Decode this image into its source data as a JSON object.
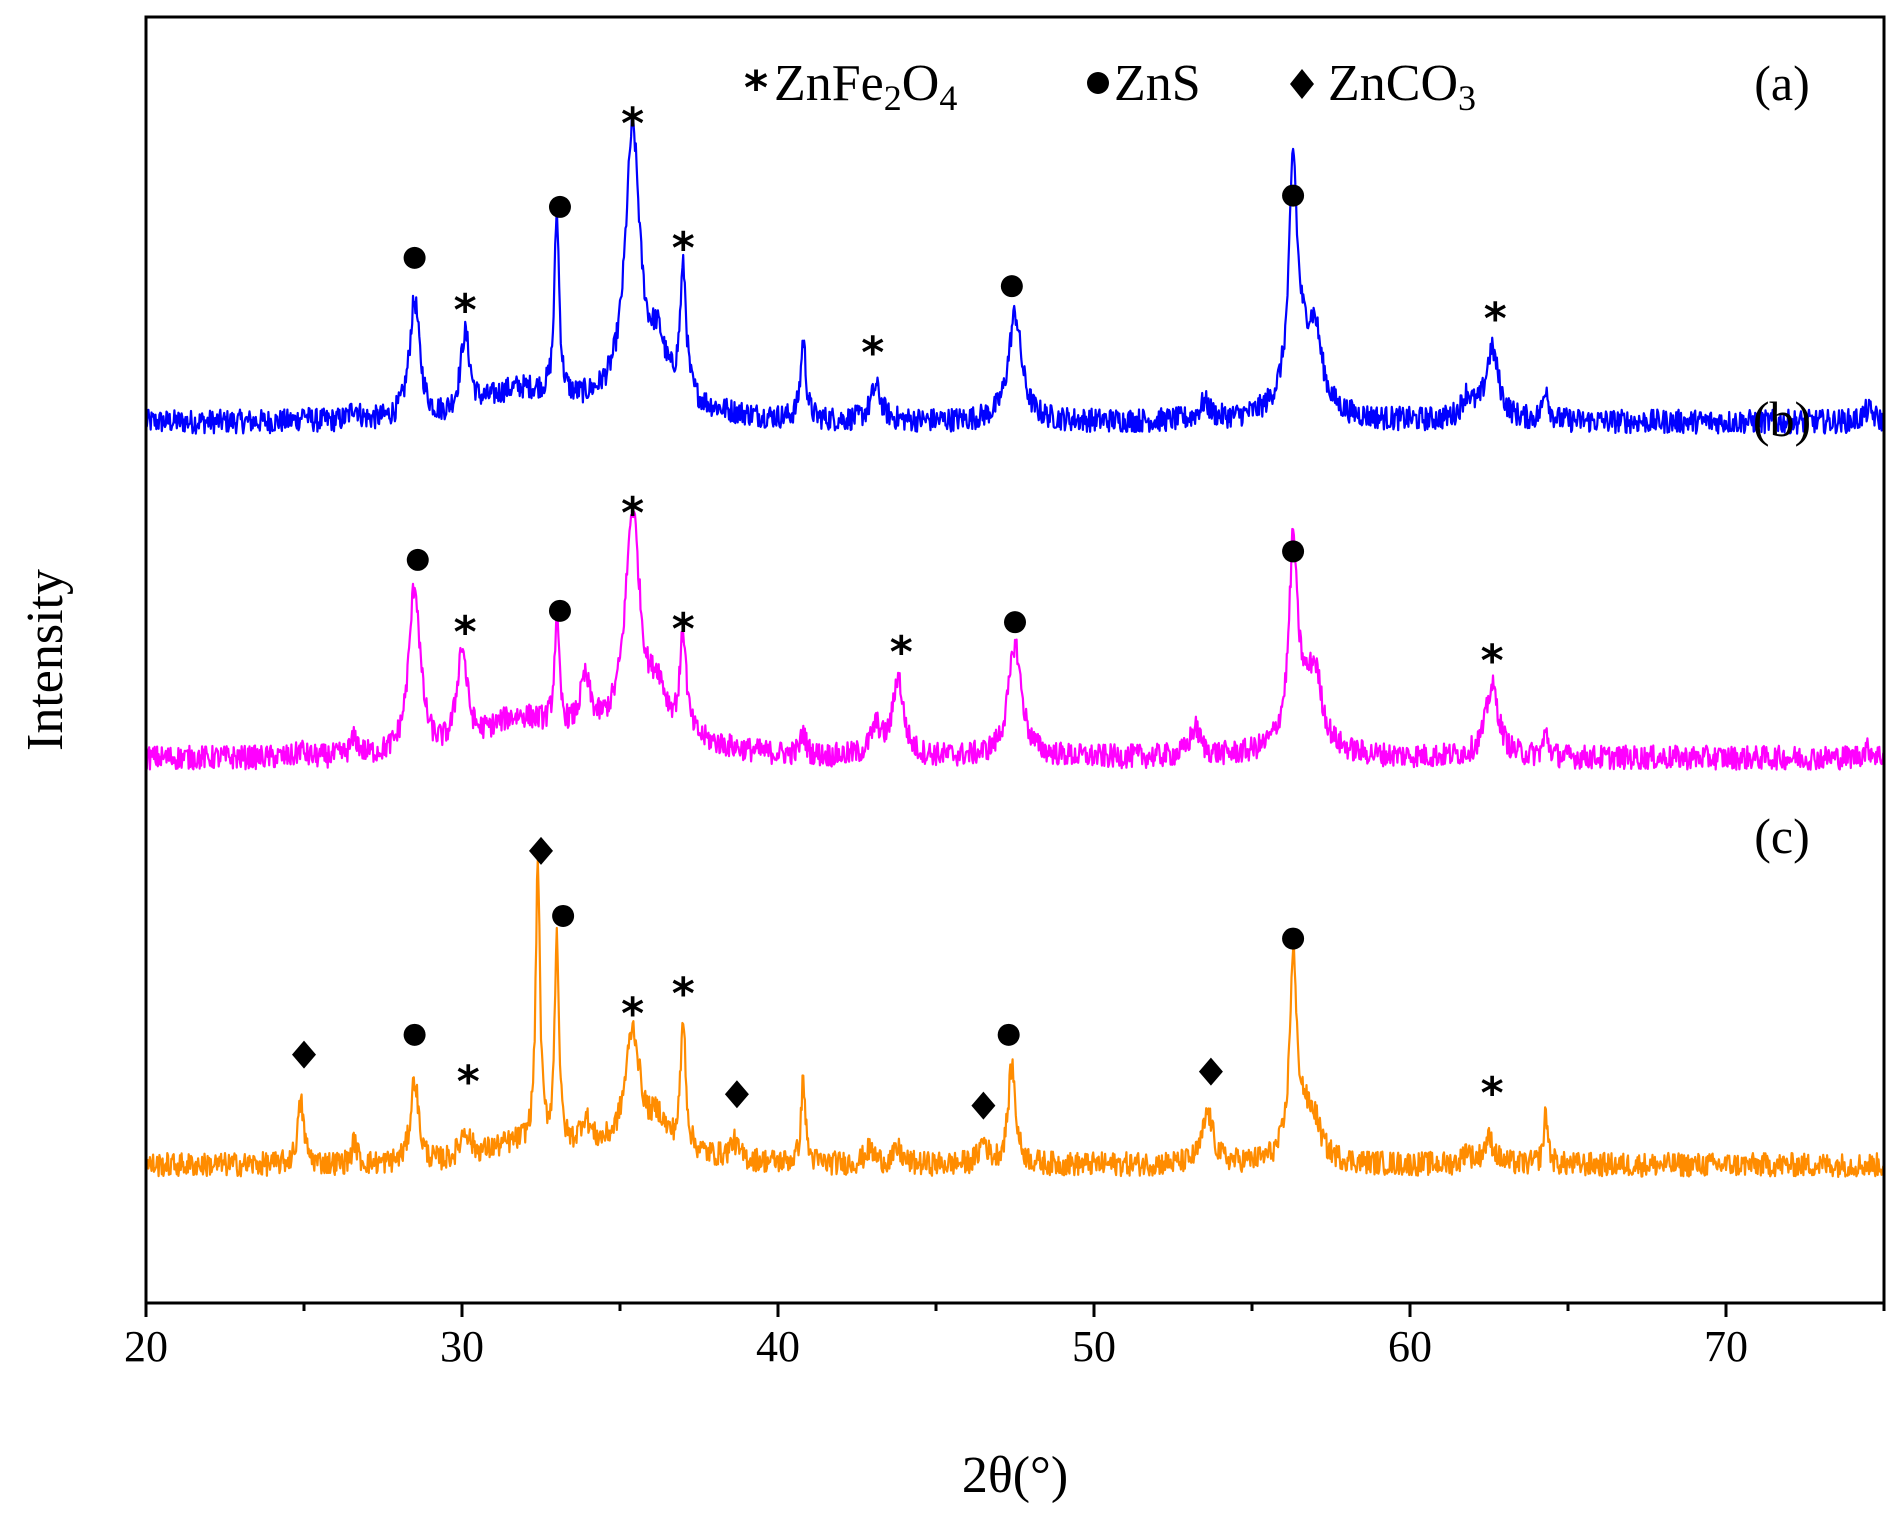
{
  "chart_data": {
    "type": "line",
    "title": "",
    "xlabel": "2θ(°)",
    "ylabel": "Intensity",
    "xlim": [
      20,
      75
    ],
    "xticks": [
      20,
      30,
      40,
      50,
      60,
      70
    ],
    "xtick_labels": [
      "20",
      "30",
      "40",
      "50",
      "60",
      "70"
    ],
    "grid": false,
    "legend": {
      "placement": "top-center",
      "entries": [
        {
          "marker": "*",
          "marker_name": "asterisk",
          "label": "ZnFe",
          "sub1": "2",
          "mid": "O",
          "sub2": "4",
          "phase": "ZnFe2O4"
        },
        {
          "marker": "●",
          "marker_name": "circle",
          "label": "ZnS",
          "sub1": "",
          "mid": "",
          "sub2": "",
          "phase": "ZnS"
        },
        {
          "marker": "◆",
          "marker_name": "diamond",
          "label": "ZnCO",
          "sub1": "3",
          "mid": "",
          "sub2": "",
          "phase": "ZnCO3"
        }
      ]
    },
    "series": [
      {
        "name": "(a)",
        "color": "#0000ff",
        "baseline": 0.0,
        "broad_bumps": [
          [
            31.7,
            0.08,
            1.3
          ],
          [
            35.0,
            0.07,
            3.5
          ]
        ],
        "peaks": [
          [
            25.0,
            0.03,
            0.1
          ],
          [
            26.6,
            0.05,
            0.15
          ],
          [
            28.5,
            0.42,
            0.2
          ],
          [
            30.1,
            0.28,
            0.18
          ],
          [
            33.0,
            0.65,
            0.09
          ],
          [
            35.4,
            0.95,
            0.28
          ],
          [
            36.2,
            0.18,
            0.3
          ],
          [
            37.0,
            0.45,
            0.12
          ],
          [
            40.8,
            0.28,
            0.1
          ],
          [
            43.1,
            0.12,
            0.2
          ],
          [
            47.5,
            0.38,
            0.25
          ],
          [
            53.5,
            0.06,
            0.2
          ],
          [
            56.3,
            0.72,
            0.14
          ],
          [
            56.5,
            0.25,
            0.5
          ],
          [
            57.0,
            0.22,
            0.25
          ],
          [
            61.8,
            0.08,
            0.2
          ],
          [
            62.6,
            0.25,
            0.25
          ],
          [
            64.3,
            0.12,
            0.1
          ],
          [
            74.5,
            0.04,
            0.2
          ]
        ],
        "markers": [
          {
            "x": 28.5,
            "level": 0.58,
            "symbol": "circle"
          },
          {
            "x": 30.1,
            "level": 0.42,
            "symbol": "asterisk"
          },
          {
            "x": 33.1,
            "level": 0.76,
            "symbol": "circle"
          },
          {
            "x": 35.4,
            "level": 1.08,
            "symbol": "asterisk"
          },
          {
            "x": 37.0,
            "level": 0.64,
            "symbol": "asterisk"
          },
          {
            "x": 43.0,
            "level": 0.27,
            "symbol": "asterisk"
          },
          {
            "x": 47.4,
            "level": 0.48,
            "symbol": "circle"
          },
          {
            "x": 56.3,
            "level": 0.8,
            "symbol": "circle"
          },
          {
            "x": 62.7,
            "level": 0.39,
            "symbol": "asterisk"
          }
        ]
      },
      {
        "name": "(b)",
        "color": "#ff00ff",
        "baseline": 0.0,
        "broad_bumps": [
          [
            31.7,
            0.1,
            1.3
          ],
          [
            35.0,
            0.08,
            3.5
          ]
        ],
        "peaks": [
          [
            24.9,
            0.03,
            0.1
          ],
          [
            26.6,
            0.06,
            0.15
          ],
          [
            28.5,
            0.6,
            0.22
          ],
          [
            30.0,
            0.35,
            0.2
          ],
          [
            33.0,
            0.38,
            0.09
          ],
          [
            33.9,
            0.18,
            0.2
          ],
          [
            35.4,
            0.78,
            0.28
          ],
          [
            36.2,
            0.15,
            0.3
          ],
          [
            37.0,
            0.35,
            0.12
          ],
          [
            40.8,
            0.08,
            0.1
          ],
          [
            43.1,
            0.1,
            0.2
          ],
          [
            43.8,
            0.28,
            0.2
          ],
          [
            47.5,
            0.4,
            0.25
          ],
          [
            53.2,
            0.1,
            0.2
          ],
          [
            56.3,
            0.6,
            0.14
          ],
          [
            56.5,
            0.2,
            0.5
          ],
          [
            57.0,
            0.22,
            0.25
          ],
          [
            62.6,
            0.25,
            0.25
          ],
          [
            64.3,
            0.08,
            0.1
          ],
          [
            74.5,
            0.03,
            0.2
          ]
        ],
        "markers": [
          {
            "x": 28.6,
            "level": 0.7,
            "symbol": "circle"
          },
          {
            "x": 30.1,
            "level": 0.47,
            "symbol": "asterisk"
          },
          {
            "x": 33.1,
            "level": 0.52,
            "symbol": "circle"
          },
          {
            "x": 35.4,
            "level": 0.89,
            "symbol": "asterisk"
          },
          {
            "x": 37.0,
            "level": 0.48,
            "symbol": "asterisk"
          },
          {
            "x": 43.9,
            "level": 0.4,
            "symbol": "asterisk"
          },
          {
            "x": 47.5,
            "level": 0.48,
            "symbol": "circle"
          },
          {
            "x": 56.3,
            "level": 0.73,
            "symbol": "circle"
          },
          {
            "x": 62.6,
            "level": 0.37,
            "symbol": "asterisk"
          }
        ]
      },
      {
        "name": "(c)",
        "color": "#ff8c00",
        "baseline": 0.0,
        "broad_bumps": [
          [
            31.7,
            0.05,
            1.3
          ],
          [
            35.0,
            0.05,
            3.5
          ]
        ],
        "peaks": [
          [
            24.9,
            0.22,
            0.12
          ],
          [
            26.6,
            0.08,
            0.1
          ],
          [
            28.5,
            0.3,
            0.15
          ],
          [
            30.1,
            0.1,
            0.2
          ],
          [
            32.4,
            1.0,
            0.08
          ],
          [
            33.0,
            0.75,
            0.08
          ],
          [
            33.9,
            0.1,
            0.2
          ],
          [
            35.4,
            0.42,
            0.28
          ],
          [
            36.2,
            0.1,
            0.3
          ],
          [
            37.0,
            0.45,
            0.1
          ],
          [
            38.6,
            0.06,
            0.15
          ],
          [
            40.8,
            0.3,
            0.08
          ],
          [
            42.9,
            0.05,
            0.2
          ],
          [
            43.8,
            0.05,
            0.15
          ],
          [
            46.5,
            0.08,
            0.15
          ],
          [
            47.4,
            0.35,
            0.14
          ],
          [
            53.6,
            0.18,
            0.2
          ],
          [
            56.3,
            0.65,
            0.12
          ],
          [
            56.6,
            0.18,
            0.4
          ],
          [
            57.0,
            0.08,
            0.2
          ],
          [
            61.8,
            0.05,
            0.12
          ],
          [
            62.5,
            0.09,
            0.2
          ],
          [
            64.3,
            0.18,
            0.08
          ]
        ],
        "markers": [
          {
            "x": 25.0,
            "level": 0.39,
            "symbol": "diamond"
          },
          {
            "x": 28.5,
            "level": 0.46,
            "symbol": "circle"
          },
          {
            "x": 30.2,
            "level": 0.32,
            "symbol": "asterisk"
          },
          {
            "x": 32.5,
            "level": 1.11,
            "symbol": "diamond"
          },
          {
            "x": 33.2,
            "level": 0.88,
            "symbol": "circle"
          },
          {
            "x": 35.4,
            "level": 0.56,
            "symbol": "asterisk"
          },
          {
            "x": 37.0,
            "level": 0.63,
            "symbol": "asterisk"
          },
          {
            "x": 38.7,
            "level": 0.25,
            "symbol": "diamond"
          },
          {
            "x": 46.5,
            "level": 0.21,
            "symbol": "diamond"
          },
          {
            "x": 47.3,
            "level": 0.46,
            "symbol": "circle"
          },
          {
            "x": 53.7,
            "level": 0.33,
            "symbol": "diamond"
          },
          {
            "x": 56.3,
            "level": 0.8,
            "symbol": "circle"
          },
          {
            "x": 62.6,
            "level": 0.28,
            "symbol": "asterisk"
          }
        ]
      }
    ]
  }
}
